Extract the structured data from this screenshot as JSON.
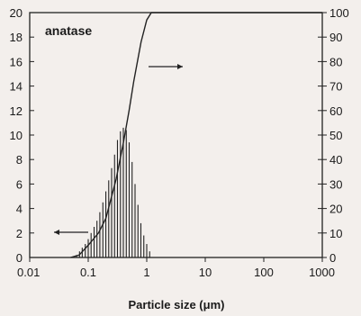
{
  "chart_data": {
    "type": "bar",
    "annotation": "anatase",
    "xlabel": "Particle size (μm)",
    "xscale": "log",
    "xlim": [
      0.01,
      1000
    ],
    "x_ticks": [
      0.01,
      0.1,
      1,
      10,
      100,
      1000
    ],
    "x_tick_labels": [
      "0.01",
      "0.1",
      "1",
      "10",
      "100",
      "1000"
    ],
    "y_left": {
      "lim": [
        0,
        20
      ],
      "ticks": [
        "0",
        "2",
        "4",
        "6",
        "8",
        "10",
        "12",
        "14",
        "16",
        "18",
        "20"
      ]
    },
    "y_right": {
      "lim": [
        0,
        100
      ],
      "ticks": [
        "0",
        "10",
        "20",
        "30",
        "40",
        "50",
        "60",
        "70",
        "80",
        "90",
        "100"
      ]
    },
    "grid": false,
    "series": [
      {
        "kind": "histogram",
        "axis": "left",
        "x": [
          0.063,
          0.071,
          0.079,
          0.089,
          0.1,
          0.112,
          0.126,
          0.141,
          0.158,
          0.178,
          0.2,
          0.224,
          0.251,
          0.282,
          0.316,
          0.355,
          0.398,
          0.447,
          0.501,
          0.562,
          0.631,
          0.708,
          0.794,
          0.891,
          1.0,
          1.122
        ],
        "values": [
          0.2,
          0.5,
          0.8,
          1.1,
          1.5,
          2.0,
          2.5,
          3.0,
          3.7,
          4.5,
          5.4,
          6.3,
          7.3,
          8.4,
          9.6,
          10.3,
          10.6,
          10.4,
          9.4,
          7.8,
          6.0,
          4.3,
          2.8,
          1.8,
          1.1,
          0.5
        ]
      },
      {
        "kind": "cumulative",
        "axis": "right",
        "x": [
          0.05,
          0.07,
          0.1,
          0.15,
          0.2,
          0.3,
          0.4,
          0.5,
          0.6,
          0.8,
          1.0,
          1.2
        ],
        "values": [
          0,
          1,
          5,
          10,
          16,
          32,
          47,
          60,
          72,
          88,
          97,
          100
        ]
      }
    ]
  }
}
